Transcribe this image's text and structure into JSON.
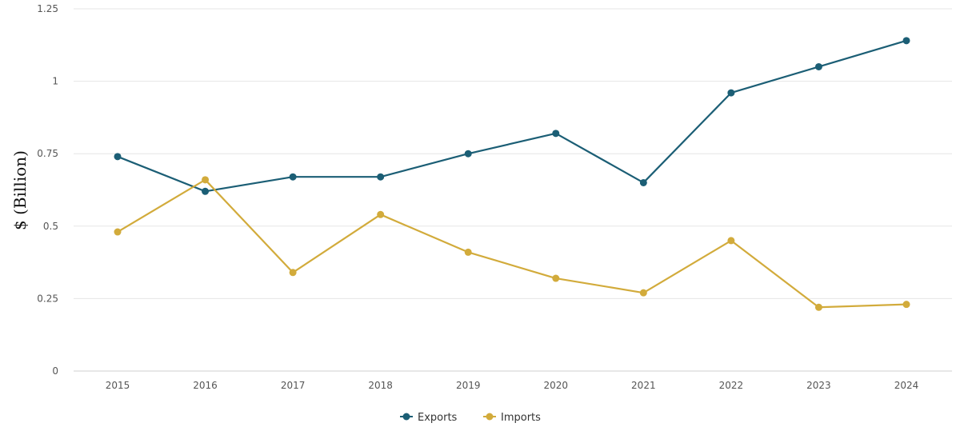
{
  "chart_data": {
    "type": "line",
    "title": "",
    "xlabel": "",
    "ylabel": "$ (Billion)",
    "x": [
      "2015",
      "2016",
      "2017",
      "2018",
      "2019",
      "2020",
      "2021",
      "2022",
      "2023",
      "2024"
    ],
    "y_ticks": [
      "0",
      "0.25",
      "0.5",
      "0.75",
      "1",
      "1.25"
    ],
    "ylim": [
      0,
      1.25
    ],
    "grid": true,
    "legend": "bottom-center",
    "series": [
      {
        "name": "Exports",
        "color": "#1b5e75",
        "values": [
          0.74,
          0.62,
          0.67,
          0.67,
          0.75,
          0.82,
          0.65,
          0.96,
          1.05,
          1.14
        ]
      },
      {
        "name": "Imports",
        "color": "#d2ab3b",
        "values": [
          0.48,
          0.66,
          0.34,
          0.54,
          0.41,
          0.32,
          0.27,
          0.45,
          0.22,
          0.23
        ]
      }
    ]
  }
}
